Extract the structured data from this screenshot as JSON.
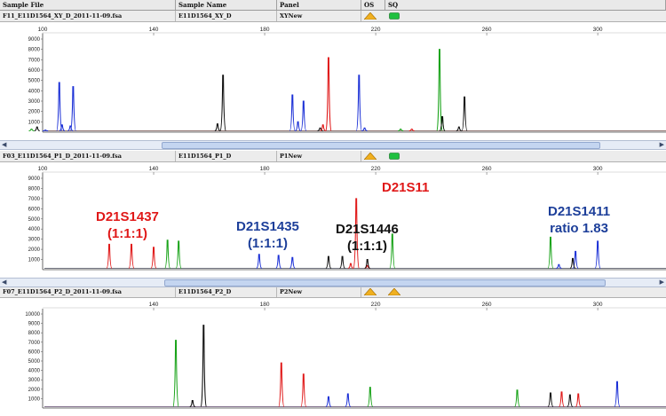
{
  "header": {
    "sample_file": "Sample File",
    "sample_name": "Sample Name",
    "panel": "Panel",
    "os": "OS",
    "sq": "SQ"
  },
  "colors": {
    "blue": "#1a2fd6",
    "green": "#19a319",
    "black": "#111111",
    "red": "#e01818",
    "anno_red": "#e01818",
    "anno_blue": "#1d3f9a"
  },
  "panels": [
    {
      "file": "F11_E11D1564_XY_D_2011-11-09.fsa",
      "name": "E11D1564_XY_D",
      "panel": "XYNew",
      "os_icon": "warning-triangle-icon",
      "sq_icon": "green-ok-icon"
    },
    {
      "file": "F03_E11D1564_P1_D_2011-11-09.fsa",
      "name": "E11D1564_P1_D",
      "panel": "P1New",
      "os_icon": "warning-triangle-icon",
      "sq_icon": "green-ok-icon"
    },
    {
      "file": "F07_E11D1564_P2_D_2011-11-09.fsa",
      "name": "E11D1564_P2_D",
      "panel": "P2New",
      "os_icon": "warning-triangle-icon",
      "sq_icon": "warning-triangle-icon"
    }
  ],
  "annotations": [
    {
      "line1": "D21S1437",
      "line2": "(1:1:1)",
      "color": "red"
    },
    {
      "line1": "D21S1435",
      "line2": "(1:1:1)",
      "color": "blue"
    },
    {
      "line1": "D21S1446",
      "line2": "(1:1:1)",
      "color": "black"
    },
    {
      "line1": "D21S11",
      "line2": "",
      "color": "red"
    },
    {
      "line1": "D21S1411",
      "line2": "ratio 1.83",
      "color": "blue"
    }
  ],
  "chart_data": [
    {
      "type": "line",
      "xlim": [
        100,
        315
      ],
      "ylim": [
        0,
        9000
      ],
      "x_ticks": [
        100,
        140,
        180,
        220,
        260,
        300
      ],
      "y_ticks": [
        1000,
        2000,
        3000,
        4000,
        5000,
        6000,
        7000,
        8000,
        9000
      ],
      "series": [
        {
          "color": "blue",
          "peaks": [
            [
              101,
              200
            ],
            [
              106,
              4800
            ],
            [
              107,
              700
            ],
            [
              111,
              4400
            ],
            [
              110,
              600
            ],
            [
              190,
              3600
            ],
            [
              192,
              1000
            ],
            [
              194,
              3000
            ],
            [
              214,
              5500
            ],
            [
              216,
              400
            ]
          ]
        },
        {
          "color": "green",
          "peaks": [
            [
              96,
              300
            ],
            [
              229,
              300
            ],
            [
              243,
              8000
            ],
            [
              244,
              1500
            ]
          ]
        },
        {
          "color": "black",
          "peaks": [
            [
              98,
              500
            ],
            [
              165,
              5500
            ],
            [
              163,
              800
            ],
            [
              200,
              400
            ],
            [
              244,
              1500
            ],
            [
              252,
              3400
            ],
            [
              250,
              500
            ]
          ]
        },
        {
          "color": "red",
          "peaks": [
            [
              203,
              7200
            ],
            [
              201,
              700
            ],
            [
              233,
              300
            ]
          ]
        }
      ]
    },
    {
      "type": "line",
      "xlim": [
        100,
        315
      ],
      "ylim": [
        0,
        9000
      ],
      "x_ticks": [
        100,
        140,
        180,
        220,
        260,
        300
      ],
      "y_ticks": [
        1000,
        2000,
        3000,
        4000,
        5000,
        6000,
        7000,
        8000,
        9000
      ],
      "series": [
        {
          "color": "red",
          "peaks": [
            [
              124,
              2500
            ],
            [
              132,
              2500
            ],
            [
              140,
              2200
            ],
            [
              211,
              600
            ],
            [
              213,
              7000
            ],
            [
              217,
              400
            ]
          ]
        },
        {
          "color": "green",
          "peaks": [
            [
              145,
              2900
            ],
            [
              149,
              2800
            ],
            [
              226,
              3500
            ],
            [
              283,
              3200
            ]
          ]
        },
        {
          "color": "blue",
          "peaks": [
            [
              178,
              1500
            ],
            [
              185,
              1400
            ],
            [
              190,
              1200
            ],
            [
              292,
              1800
            ],
            [
              300,
              2800
            ],
            [
              286,
              500
            ]
          ]
        },
        {
          "color": "black",
          "peaks": [
            [
              203,
              1300
            ],
            [
              208,
              1300
            ],
            [
              217,
              1000
            ],
            [
              291,
              1100
            ]
          ]
        }
      ]
    },
    {
      "type": "line",
      "xlim": [
        100,
        315
      ],
      "ylim": [
        0,
        10000
      ],
      "x_ticks": [
        140,
        180,
        220,
        260,
        300
      ],
      "y_ticks": [
        1000,
        2000,
        3000,
        4000,
        5000,
        6000,
        7000,
        8000,
        9000,
        10000
      ],
      "series": [
        {
          "color": "green",
          "peaks": [
            [
              148,
              7200
            ],
            [
              218,
              2200
            ],
            [
              271,
              1900
            ]
          ]
        },
        {
          "color": "black",
          "peaks": [
            [
              154,
              800
            ],
            [
              158,
              8800
            ],
            [
              283,
              1600
            ],
            [
              290,
              1400
            ]
          ]
        },
        {
          "color": "red",
          "peaks": [
            [
              186,
              4800
            ],
            [
              194,
              3600
            ],
            [
              287,
              1700
            ],
            [
              293,
              1500
            ]
          ]
        },
        {
          "color": "blue",
          "peaks": [
            [
              203,
              1200
            ],
            [
              210,
              1500
            ],
            [
              307,
              2800
            ]
          ]
        }
      ]
    }
  ]
}
